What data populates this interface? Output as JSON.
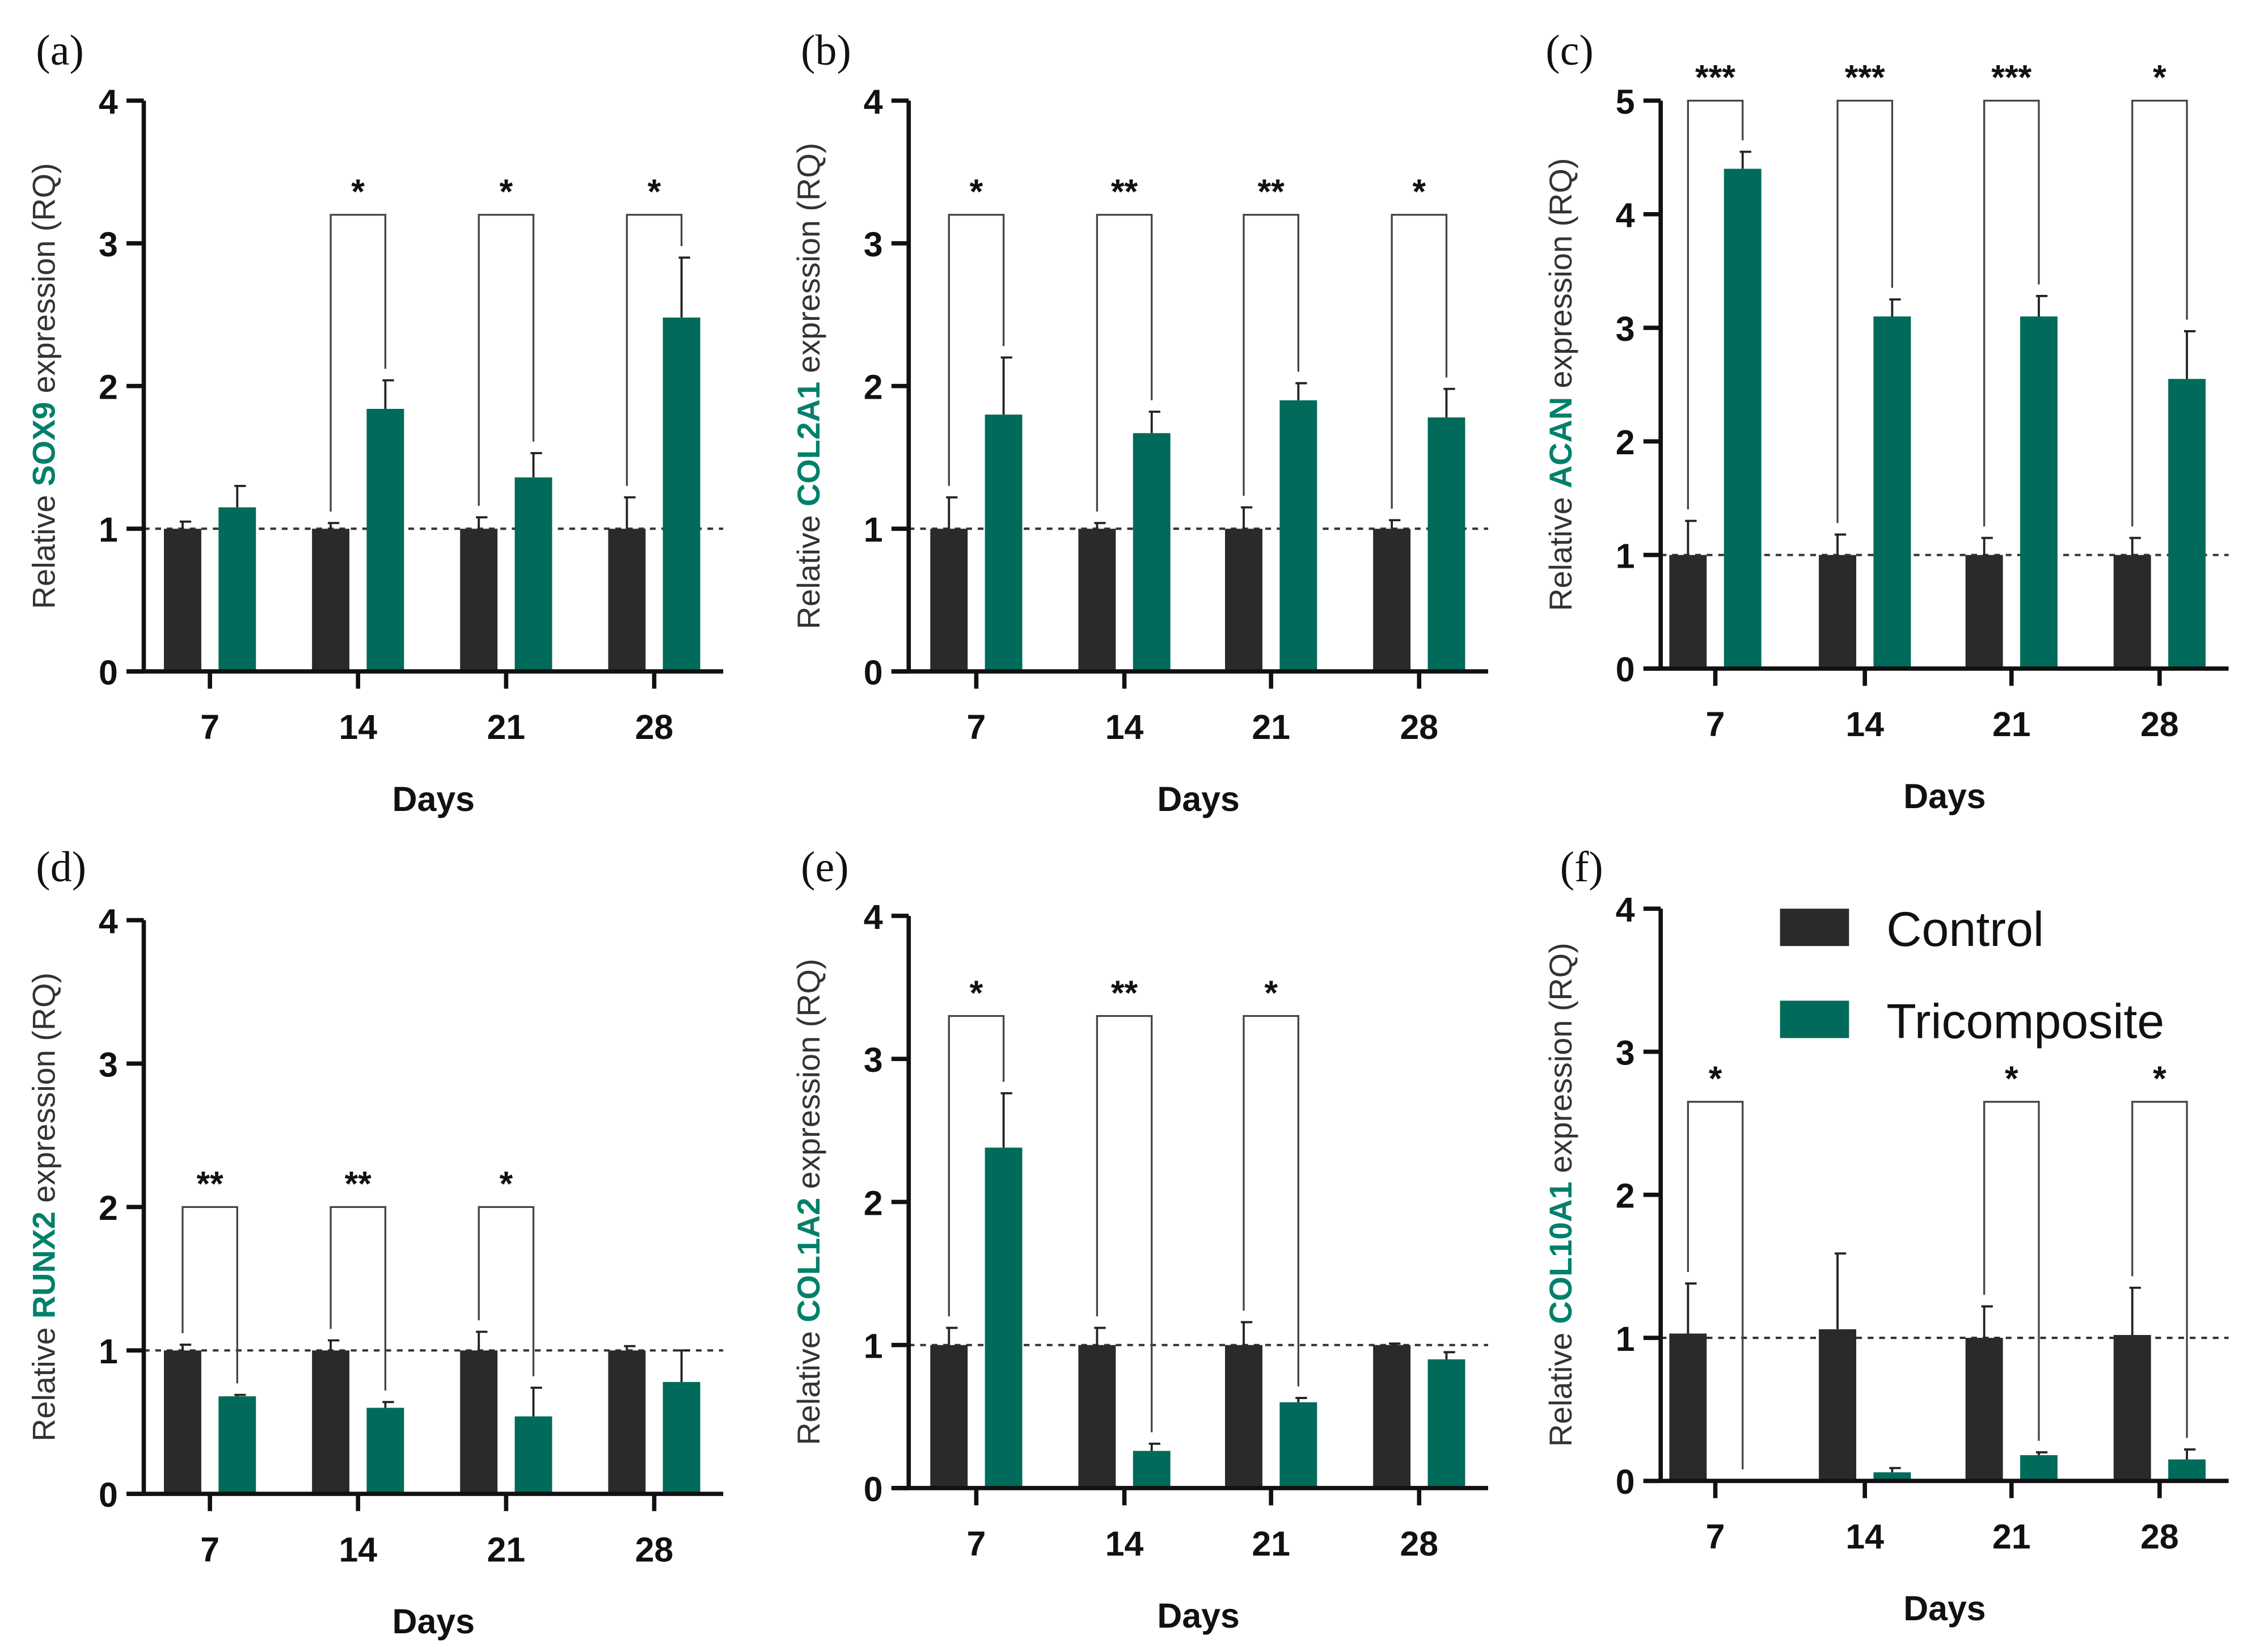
{
  "colors": {
    "control": "#2a2a2a",
    "tricomposite": "#006b5a",
    "gene_text": "#00806b"
  },
  "legend": [
    {
      "label": "Control",
      "color": "#2a2a2a"
    },
    {
      "label": "Tricomposite",
      "color": "#006b5a"
    }
  ],
  "chart_data": [
    {
      "panel": "(a)",
      "type": "bar",
      "gene": "SOX9",
      "ylabel_prefix": "Relative",
      "ylabel_suffix": "expression (RQ)",
      "xlabel": "Days",
      "categories": [
        "7",
        "14",
        "21",
        "28"
      ],
      "ylim": [
        0,
        4
      ],
      "yticks": [
        0,
        1,
        2,
        3,
        4
      ],
      "reference_line": 1,
      "series": [
        {
          "name": "Control",
          "values": [
            1.0,
            1.0,
            1.0,
            1.0
          ],
          "errors": [
            0.05,
            0.04,
            0.08,
            0.22
          ]
        },
        {
          "name": "Tricomposite",
          "values": [
            1.15,
            1.84,
            1.36,
            2.48
          ],
          "errors": [
            0.15,
            0.2,
            0.17,
            0.42
          ]
        }
      ],
      "significance": [
        "",
        "*",
        "*",
        "*"
      ],
      "bracket_level": 3.2
    },
    {
      "panel": "(b)",
      "type": "bar",
      "gene": "COL2A1",
      "ylabel_prefix": "Relative",
      "ylabel_suffix": "expression (RQ)",
      "xlabel": "Days",
      "categories": [
        "7",
        "14",
        "21",
        "28"
      ],
      "ylim": [
        0,
        4
      ],
      "yticks": [
        0,
        1,
        2,
        3,
        4
      ],
      "reference_line": 1,
      "series": [
        {
          "name": "Control",
          "values": [
            1.0,
            1.0,
            1.0,
            1.0
          ],
          "errors": [
            0.22,
            0.04,
            0.15,
            0.06
          ]
        },
        {
          "name": "Tricomposite",
          "values": [
            1.8,
            1.67,
            1.9,
            1.78
          ],
          "errors": [
            0.4,
            0.15,
            0.12,
            0.2
          ]
        }
      ],
      "significance": [
        "*",
        "**",
        "**",
        "*"
      ],
      "bracket_level": 3.2
    },
    {
      "panel": "(c)",
      "type": "bar",
      "gene": "ACAN",
      "ylabel_prefix": "Relative",
      "ylabel_suffix": "expression (RQ)",
      "xlabel": "Days",
      "categories": [
        "7",
        "14",
        "21",
        "28"
      ],
      "ylim": [
        0,
        5
      ],
      "yticks": [
        0,
        1,
        2,
        3,
        4,
        5
      ],
      "reference_line": 1,
      "series": [
        {
          "name": "Control",
          "values": [
            1.0,
            1.0,
            1.0,
            1.0
          ],
          "errors": [
            0.3,
            0.18,
            0.15,
            0.15
          ]
        },
        {
          "name": "Tricomposite",
          "values": [
            4.4,
            3.1,
            3.1,
            2.55
          ],
          "errors": [
            0.15,
            0.15,
            0.18,
            0.42
          ]
        }
      ],
      "significance": [
        "***",
        "***",
        "***",
        "*"
      ],
      "bracket_level": 5.0
    },
    {
      "panel": "(d)",
      "type": "bar",
      "gene": "RUNX2",
      "ylabel_prefix": "Relative",
      "ylabel_suffix": "expression (RQ)",
      "xlabel": "Days",
      "categories": [
        "7",
        "14",
        "21",
        "28"
      ],
      "ylim": [
        0,
        4
      ],
      "yticks": [
        0,
        1,
        2,
        3,
        4
      ],
      "reference_line": 1,
      "series": [
        {
          "name": "Control",
          "values": [
            1.0,
            1.0,
            1.0,
            1.0
          ],
          "errors": [
            0.04,
            0.07,
            0.13,
            0.03
          ]
        },
        {
          "name": "Tricomposite",
          "values": [
            0.68,
            0.6,
            0.54,
            0.78
          ],
          "errors": [
            0.01,
            0.04,
            0.2,
            0.22
          ]
        }
      ],
      "significance": [
        "**",
        "**",
        "*",
        ""
      ],
      "bracket_level": 2.0
    },
    {
      "panel": "(e)",
      "type": "bar",
      "gene": "COL1A2",
      "ylabel_prefix": "Relative",
      "ylabel_suffix": "expression (RQ)",
      "xlabel": "Days",
      "categories": [
        "7",
        "14",
        "21",
        "28"
      ],
      "ylim": [
        0,
        4
      ],
      "yticks": [
        0,
        1,
        2,
        3,
        4
      ],
      "reference_line": 1,
      "series": [
        {
          "name": "Control",
          "values": [
            1.0,
            1.0,
            1.0,
            1.0
          ],
          "errors": [
            0.12,
            0.12,
            0.16,
            0.01
          ]
        },
        {
          "name": "Tricomposite",
          "values": [
            2.38,
            0.26,
            0.6,
            0.9
          ],
          "errors": [
            0.38,
            0.05,
            0.03,
            0.05
          ]
        }
      ],
      "significance": [
        "*",
        "**",
        "*",
        ""
      ],
      "bracket_level": 3.3
    },
    {
      "panel": "(f)",
      "type": "bar",
      "gene": "COL10A1",
      "ylabel_prefix": "Relative",
      "ylabel_suffix": "expression (RQ)",
      "xlabel": "Days",
      "categories": [
        "7",
        "14",
        "21",
        "28"
      ],
      "ylim": [
        0,
        4
      ],
      "yticks": [
        0,
        1,
        2,
        3,
        4
      ],
      "reference_line": 1,
      "series": [
        {
          "name": "Control",
          "values": [
            1.03,
            1.06,
            1.0,
            1.02
          ],
          "errors": [
            0.35,
            0.53,
            0.22,
            0.33
          ]
        },
        {
          "name": "Tricomposite",
          "values": [
            0.0,
            0.06,
            0.18,
            0.15
          ],
          "errors": [
            0.0,
            0.03,
            0.02,
            0.07
          ]
        }
      ],
      "significance": [
        "*",
        "",
        "*",
        "*"
      ],
      "bracket_level": 2.65
    }
  ]
}
